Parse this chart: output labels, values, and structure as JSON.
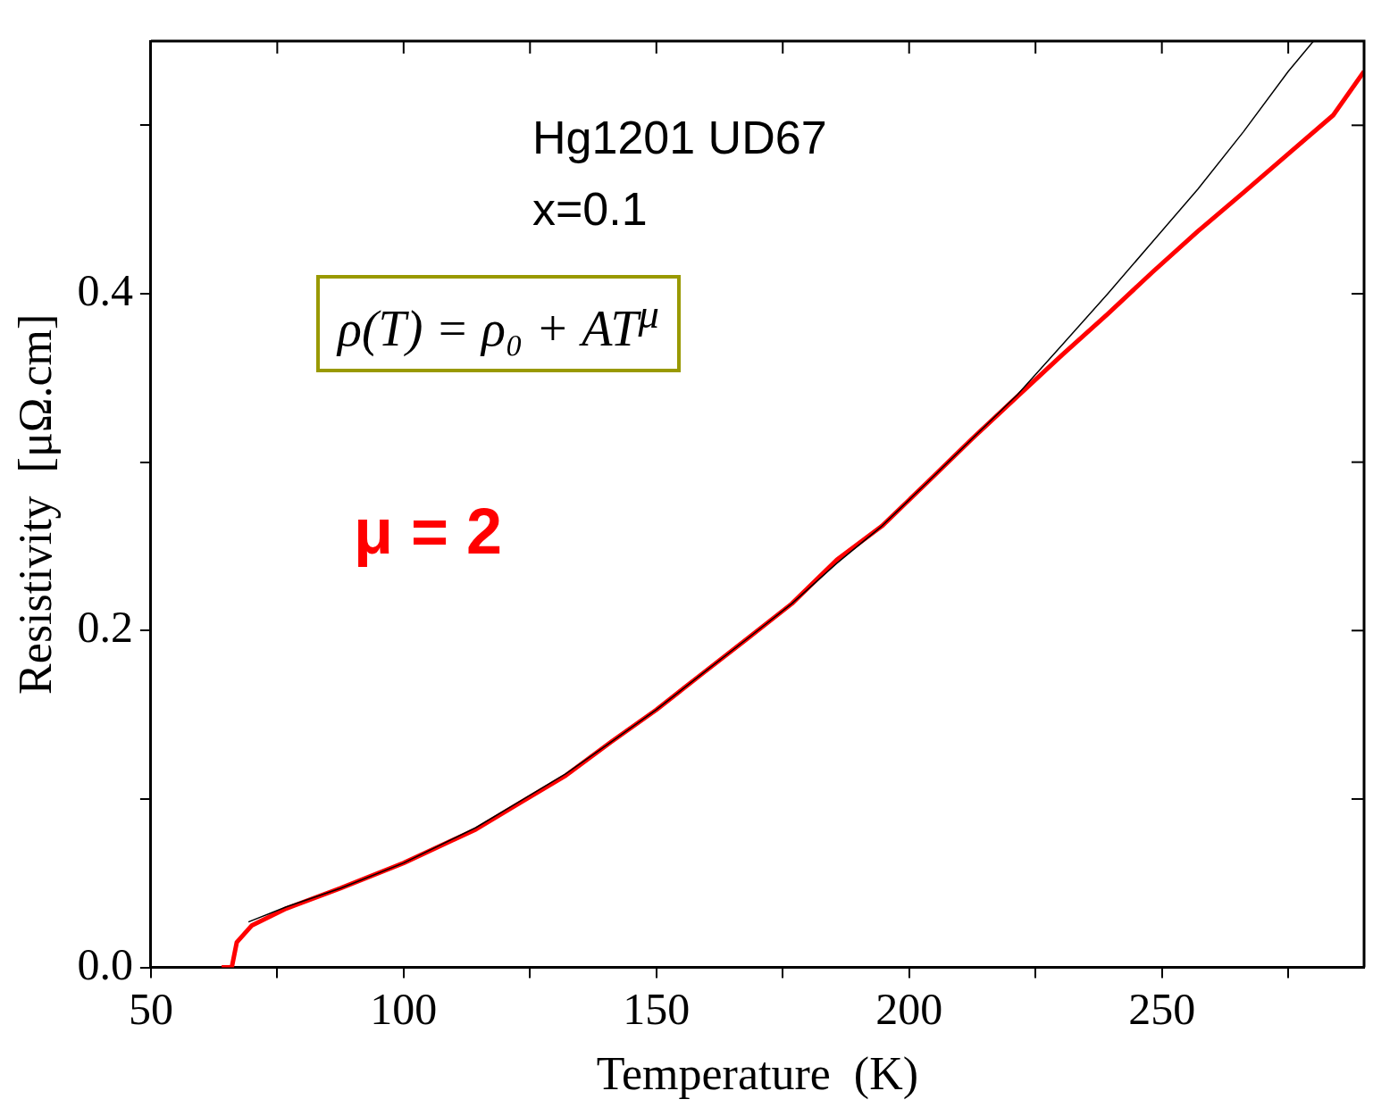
{
  "chart_data": {
    "type": "line",
    "xlabel": "Temperature  (K)",
    "ylabel": "Resistivity  [μΩ.cm]",
    "xlim": [
      50,
      290
    ],
    "xticks": [
      50,
      {
        "value": 75,
        "label": null
      },
      100,
      {
        "value": 125,
        "label": null
      },
      150,
      {
        "value": 175,
        "label": null
      },
      200,
      {
        "value": 225,
        "label": null
      },
      250,
      {
        "value": 275,
        "label": null
      }
    ],
    "ylim": [
      0,
      0.55
    ],
    "yticks": [
      {
        "value": 0,
        "label": "0.0"
      },
      {
        "value": 0.1,
        "label": null
      },
      0.2,
      {
        "value": 0.3,
        "label": null
      },
      0.4,
      {
        "value": 0.5,
        "label": null
      }
    ],
    "grid": false,
    "legend": false,
    "marker": "none",
    "line_style": "solid",
    "annotations": [
      "Hg1201 UD67",
      "x=0.1",
      "ρ(T) = ρ₀ + AT$^{μ}$",
      "μ = 2"
    ],
    "series": [
      {
        "color": "#ff0000",
        "x": [
          64,
          66,
          67,
          70,
          76.8,
          87.5,
          100,
          114.3,
          123.2,
          132.1,
          141.1,
          150,
          158.9,
          167.9,
          176.8,
          185.7,
          194.6,
          203.6,
          212.5,
          221.4,
          230.4,
          239.3,
          248.2,
          257.1,
          266.1,
          275,
          283.9,
          290
        ],
        "values": [
          0,
          0,
          0.015,
          0.025,
          0.035,
          0.047,
          0.062,
          0.082,
          0.098,
          0.114,
          0.134,
          0.153,
          0.174,
          0.195,
          0.216,
          0.242,
          0.262,
          0.288,
          0.314,
          0.339,
          0.364,
          0.388,
          0.413,
          0.437,
          0.46,
          0.483,
          0.506,
          0.532
        ]
      },
      {
        "type": "line",
        "color": "#000000",
        "x": [
          69.3,
          76.8,
          87.5,
          100,
          114.3,
          123.2,
          132.1,
          141.1,
          150,
          158.9,
          167.9,
          176.8,
          185.7,
          194.6,
          203.6,
          212.5,
          221.4,
          230.4,
          239.3,
          248.2,
          257.1,
          266.1,
          275,
          280
        ],
        "values": [
          0.027,
          0.036,
          0.047,
          0.062,
          0.083,
          0.099,
          0.115,
          0.134,
          0.153,
          0.174,
          0.195,
          0.216,
          0.24,
          0.262,
          0.288,
          0.314,
          0.34,
          0.37,
          0.4,
          0.431,
          0.462,
          0.496,
          0.532,
          0.55
        ]
      }
    ]
  }
}
